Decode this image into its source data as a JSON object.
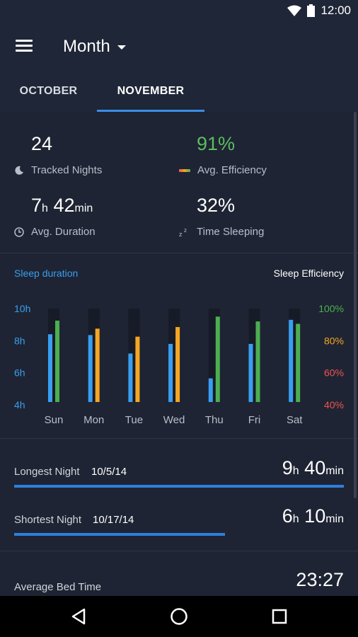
{
  "status": {
    "time": "12:00"
  },
  "appbar": {
    "title": "Month"
  },
  "tabs": [
    {
      "label": "OCTOBER"
    },
    {
      "label": "NOVEMBER"
    }
  ],
  "stats": {
    "tracked_nights": {
      "value": "24",
      "label": "Tracked Nights"
    },
    "avg_efficiency": {
      "value": "91%",
      "label": "Avg. Efficiency"
    },
    "avg_duration": {
      "hours": "7",
      "h_unit": "h",
      "minutes": "42",
      "min_unit": "min",
      "label": "Avg. Duration"
    },
    "time_sleeping": {
      "value": "32%",
      "label": "Time Sleeping"
    }
  },
  "chart_legend": {
    "left": "Sleep duration",
    "right": "Sleep Efficiency"
  },
  "chart_data": {
    "type": "bar",
    "categories": [
      "Sun",
      "Mon",
      "Tue",
      "Wed",
      "Thu",
      "Fri",
      "Sat"
    ],
    "y_left_ticks": [
      "10h",
      "8h",
      "6h",
      "4h"
    ],
    "y_right_ticks": [
      "100%",
      "80%",
      "60%",
      "40%"
    ],
    "ylim_left": [
      4,
      10
    ],
    "ylim_right": [
      40,
      100
    ],
    "series": [
      {
        "values": [
          8.4,
          8.35,
          7.2,
          7.8,
          5.65,
          7.8,
          9.3
        ],
        "color": "#3a9ef0"
      },
      {
        "values": [
          92.5,
          87.5,
          82.5,
          88.5,
          95,
          92,
          90.5
        ],
        "colors": [
          "#4caf50",
          "#f5a623",
          "#f5a623",
          "#f5a623",
          "#4caf50",
          "#4caf50",
          "#4caf50"
        ]
      }
    ],
    "colors": {
      "duration": "#3a9ef0",
      "efficiency_high": "#4caf50",
      "efficiency_mid": "#f5a623",
      "efficiency_low": "#ef5350"
    }
  },
  "longest": {
    "label": "Longest Night",
    "date": "10/5/14",
    "hours": "9",
    "h_unit": "h",
    "minutes": "40",
    "min_unit": "min",
    "fill": 1.0
  },
  "shortest": {
    "label": "Shortest Night",
    "date": "10/17/14",
    "hours": "6",
    "h_unit": "h",
    "minutes": "10",
    "min_unit": "min",
    "fill": 0.64
  },
  "bedtime": {
    "label": "Average Bed Time",
    "value": "23:27"
  },
  "accent": "#3a8ee6"
}
